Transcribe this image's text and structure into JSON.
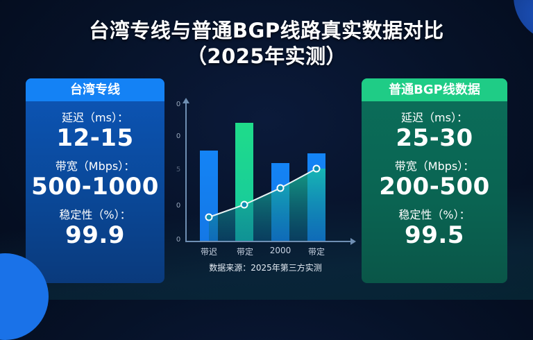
{
  "title": {
    "line1": "台湾专线与普通BGP线路真实数据对比",
    "line2": "（2025年实测）"
  },
  "left_panel": {
    "header": "台湾专线",
    "color": "#1482f5",
    "metrics": [
      {
        "label": "延迟（ms）：",
        "value": "12-15"
      },
      {
        "label": "带宽（Mbps）：",
        "value": "500-1000"
      },
      {
        "label": "稳定性（%）：",
        "value": "99.9"
      }
    ]
  },
  "right_panel": {
    "header": "普通BGP线数据",
    "color": "#1fcc86",
    "metrics": [
      {
        "label": "延迟（ms）：",
        "value": "25-30"
      },
      {
        "label": "带宽（Mbps）：",
        "value": "200-500"
      },
      {
        "label": "稳定性（%）：",
        "value": "99.5"
      }
    ]
  },
  "chart_data": {
    "type": "bar",
    "title": "",
    "categories": [
      "带迟",
      "带定",
      "2000",
      "带定"
    ],
    "series": [
      {
        "name": "bars",
        "values": [
          65,
          85,
          56,
          63
        ],
        "colors": [
          "#1484f6",
          "#1fdc8a",
          "#1484f6",
          "#1484f6"
        ]
      },
      {
        "name": "trend-line",
        "type": "line",
        "values": [
          17,
          26,
          38,
          52
        ],
        "color": "#e8f4f4"
      }
    ],
    "yticks": [
      "0",
      "0",
      "5",
      "0",
      "0"
    ],
    "xlabel": "",
    "ylabel": "",
    "ylim": [
      0,
      100
    ],
    "grid": false,
    "legend": "none",
    "source_note": "数据来源：2025年第三方实测"
  }
}
